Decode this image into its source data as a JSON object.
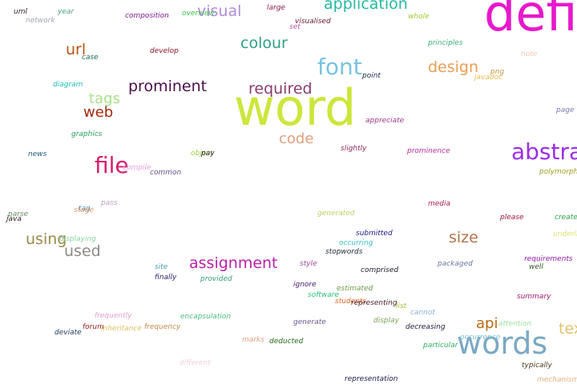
{
  "words": [
    {
      "text": "definition",
      "color": "#e619cc"
    },
    {
      "text": "word",
      "color": "#cde63b"
    },
    {
      "text": "words",
      "color": "#7aa9c4"
    },
    {
      "text": "abstract",
      "color": "#9b2ee6"
    },
    {
      "text": "font",
      "color": "#78c3e0"
    },
    {
      "text": "file",
      "color": "#d41e6e"
    },
    {
      "text": "application",
      "color": "#25b8a0"
    },
    {
      "text": "assignment",
      "color": "#bc1fa8"
    },
    {
      "text": "prominent",
      "color": "#4a0f49"
    },
    {
      "text": "required",
      "color": "#8a3b6f"
    },
    {
      "text": "visual",
      "color": "#b08ad8"
    },
    {
      "text": "colour",
      "color": "#2f9e87"
    },
    {
      "text": "design",
      "color": "#e89e52"
    },
    {
      "text": "using",
      "color": "#9c8a49"
    },
    {
      "text": "used",
      "color": "#8d8a86"
    },
    {
      "text": "size",
      "color": "#b0734a"
    },
    {
      "text": "text",
      "color": "#e0c36a"
    },
    {
      "text": "url",
      "color": "#b8530e"
    },
    {
      "text": "web",
      "color": "#a32a0c"
    },
    {
      "text": "tags",
      "color": "#a8e08a"
    },
    {
      "text": "code",
      "color": "#e0a080"
    },
    {
      "text": "api",
      "color": "#b86a14"
    },
    {
      "text": "large",
      "color": "#8a1f55"
    },
    {
      "text": "overview",
      "color": "#39c24a"
    },
    {
      "text": "composition",
      "color": "#7a1a8c"
    },
    {
      "text": "uml",
      "color": "#2a1a20"
    },
    {
      "text": "year",
      "color": "#4aa07a"
    },
    {
      "text": "network",
      "color": "#9aa8b8"
    },
    {
      "text": "visualised",
      "color": "#6a1a3a"
    },
    {
      "text": "set",
      "color": "#b15a9a"
    },
    {
      "text": "whole",
      "color": "#a0c830"
    },
    {
      "text": "principles",
      "color": "#3ab07a"
    },
    {
      "text": "note",
      "color": "#f0c8b0"
    },
    {
      "text": "case",
      "color": "#1a6a5a"
    },
    {
      "text": "develop",
      "color": "#8a1a2a"
    },
    {
      "text": "png",
      "color": "#c09a4a"
    },
    {
      "text": "javadoc",
      "color": "#e0c050"
    },
    {
      "text": "point",
      "color": "#1a2a4a"
    },
    {
      "text": "diagram",
      "color": "#1ac0b0"
    },
    {
      "text": "page",
      "color": "#7a7ab0"
    },
    {
      "text": "appreciate",
      "color": "#9a3a8a"
    },
    {
      "text": "graphics",
      "color": "#2aa05a"
    },
    {
      "text": "slightly",
      "color": "#8a2a5a"
    },
    {
      "text": "prominence",
      "color": "#c02a9a"
    },
    {
      "text": "news",
      "color": "#1a5a7a"
    },
    {
      "text": "object",
      "color": "#a0d040"
    },
    {
      "text": "pay",
      "color": "#1a1a1a"
    },
    {
      "text": "compile",
      "color": "#e0a0e0"
    },
    {
      "text": "common",
      "color": "#6a4a8a"
    },
    {
      "text": "polymorphism",
      "color": "#a0a020"
    },
    {
      "text": "pass",
      "color": "#c0a0c0"
    },
    {
      "text": "media",
      "color": "#b01a4a"
    },
    {
      "text": "parse",
      "color": "#6a8a6a"
    },
    {
      "text": "java",
      "color": "#2a1a1a"
    },
    {
      "text": "tag",
      "color": "#4a8ab0"
    },
    {
      "text": "stage",
      "color": "#e09a6a"
    },
    {
      "text": "generated",
      "color": "#c0d060"
    },
    {
      "text": "please",
      "color": "#a01a3a"
    },
    {
      "text": "create",
      "color": "#2aa04a"
    },
    {
      "text": "submitted",
      "color": "#1a1a8a"
    },
    {
      "text": "underline",
      "color": "#e0e070"
    },
    {
      "text": "displaying",
      "color": "#8ad0a0"
    },
    {
      "text": "occurring",
      "color": "#3ac0c0"
    },
    {
      "text": "stopwords",
      "color": "#1a2a3a"
    },
    {
      "text": "site",
      "color": "#4a9ab0"
    },
    {
      "text": "style",
      "color": "#9a4a9a"
    },
    {
      "text": "packaged",
      "color": "#6a7aa0"
    },
    {
      "text": "requirements",
      "color": "#8a1aa0"
    },
    {
      "text": "well",
      "color": "#3a5a2a"
    },
    {
      "text": "finally",
      "color": "#2a1a6a"
    },
    {
      "text": "provided",
      "color": "#3aa07a"
    },
    {
      "text": "comprised",
      "color": "#1a1a2a"
    },
    {
      "text": "ignore",
      "color": "#4a1a6a"
    },
    {
      "text": "estimated",
      "color": "#6a9a4a"
    },
    {
      "text": "summary",
      "color": "#a01a6a"
    },
    {
      "text": "software",
      "color": "#2ac07a"
    },
    {
      "text": "students",
      "color": "#e06a20"
    },
    {
      "text": "representing",
      "color": "#4a1a2a"
    },
    {
      "text": "list",
      "color": "#a0c030"
    },
    {
      "text": "frequently",
      "color": "#e0a0d0"
    },
    {
      "text": "encapsulation",
      "color": "#4ac07a"
    },
    {
      "text": "cannot",
      "color": "#8ab0d0"
    },
    {
      "text": "attention",
      "color": "#a0e0a0"
    },
    {
      "text": "generate",
      "color": "#6a5a8a"
    },
    {
      "text": "display",
      "color": "#7aa05a"
    },
    {
      "text": "forum",
      "color": "#8a1a1a"
    },
    {
      "text": "inheritance",
      "color": "#e0c060"
    },
    {
      "text": "frequency",
      "color": "#c08a4a"
    },
    {
      "text": "deviate",
      "color": "#1a3a5a"
    },
    {
      "text": "decreasing",
      "color": "#1a1a3a"
    },
    {
      "text": "occurrence",
      "color": "#7ac0d0"
    },
    {
      "text": "marks",
      "color": "#e0a080"
    },
    {
      "text": "deducted",
      "color": "#2a6a1a"
    },
    {
      "text": "particular",
      "color": "#2ab05a"
    },
    {
      "text": "different",
      "color": "#f0d0e0"
    },
    {
      "text": "typically",
      "color": "#4a3a1a"
    },
    {
      "text": "representation",
      "color": "#1a1a4a"
    },
    {
      "text": "mechanism",
      "color": "#e0b080"
    }
  ]
}
